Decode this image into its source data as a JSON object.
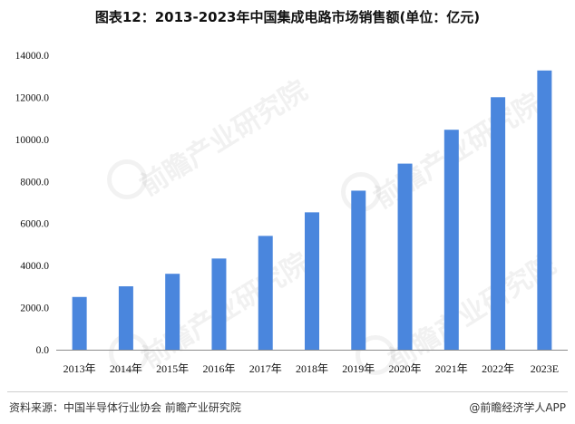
{
  "colors": {
    "bar": "#4a86dd",
    "axis": "#8c8c8c",
    "text": "#111111",
    "watermark": "#969696"
  },
  "chart_data": {
    "type": "bar",
    "title": "图表12：2013-2023年中国集成电路市场销售额(单位：亿元)",
    "xlabel": "",
    "ylabel": "",
    "categories": [
      "2013年",
      "2014年",
      "2015年",
      "2016年",
      "2017年",
      "2018年",
      "2019年",
      "2020年",
      "2021年",
      "2022年",
      "2023E"
    ],
    "values": [
      2508,
      3015,
      3610,
      4336,
      5411,
      6532,
      7562,
      8848,
      10458,
      12006,
      13276
    ],
    "ylim": [
      0,
      14000
    ],
    "yticks": [
      0,
      2000,
      4000,
      6000,
      8000,
      10000,
      12000,
      14000
    ],
    "ytick_labels": [
      "0.0",
      "2000.0",
      "4000.0",
      "6000.0",
      "8000.0",
      "10000.0",
      "12000.0",
      "14000.0"
    ],
    "grid": false,
    "legend": "none"
  },
  "footer": {
    "source": "资料来源：中国半导体行业协会 前瞻产业研究院",
    "credit": "@前瞻经济学人APP"
  },
  "watermark": {
    "text": "前瞻产业研究院"
  }
}
